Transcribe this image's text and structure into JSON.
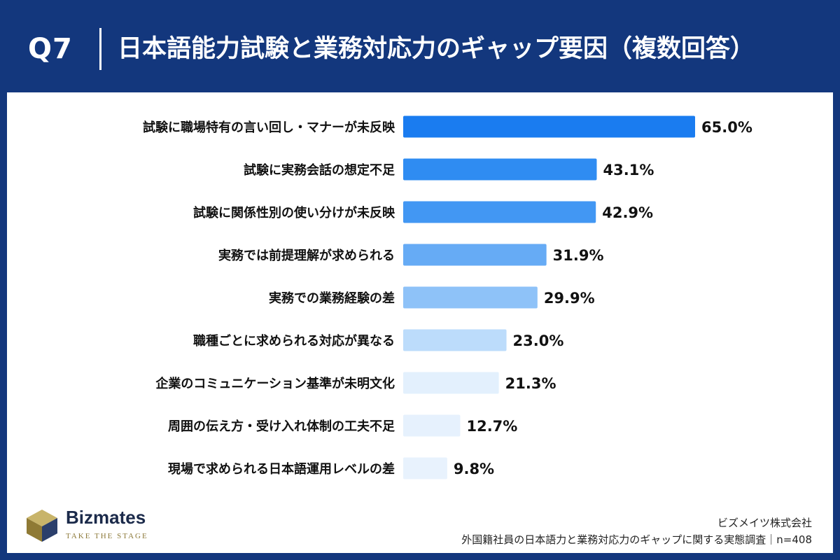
{
  "header": {
    "question": "Q7",
    "title": "日本語能力試験と業務対応力のギャップ要因（複数回答）"
  },
  "chart_data": {
    "type": "bar",
    "orientation": "horizontal",
    "categories": [
      "試験に職場特有の言い回し・マナーが未反映",
      "試験に実務会話の想定不足",
      "試験に関係性別の使い分けが未反映",
      "実務では前提理解が求められる",
      "実務での業務経験の差",
      "職種ごとに求められる対応が異なる",
      "企業のコミュニケーション基準が未明文化",
      "周囲の伝え方・受け入れ体制の工夫不足",
      "現場で求められる日本語運用レベルの差"
    ],
    "values": [
      65.0,
      43.1,
      42.9,
      31.9,
      29.9,
      23.0,
      21.3,
      12.7,
      9.8
    ],
    "value_labels": [
      "65.0%",
      "43.1%",
      "42.9%",
      "31.9%",
      "29.9%",
      "23.0%",
      "21.3%",
      "12.7%",
      "9.8%"
    ],
    "bar_colors": [
      "#1a7cf0",
      "#2f8cf2",
      "#4297f3",
      "#66abf5",
      "#8ec2f8",
      "#bcdcfb",
      "#e3f0fd",
      "#e6f1fd",
      "#e8f2fd"
    ],
    "xlim": [
      0,
      65
    ],
    "grid": false,
    "legend": "none"
  },
  "footer": {
    "logo_name": "Bizmates",
    "logo_tagline": "TAKE THE STAGE",
    "company": "ビズメイツ株式会社",
    "survey": "外国籍社員の日本語力と業務対応力のギャップに関する実態調査｜n=408"
  }
}
